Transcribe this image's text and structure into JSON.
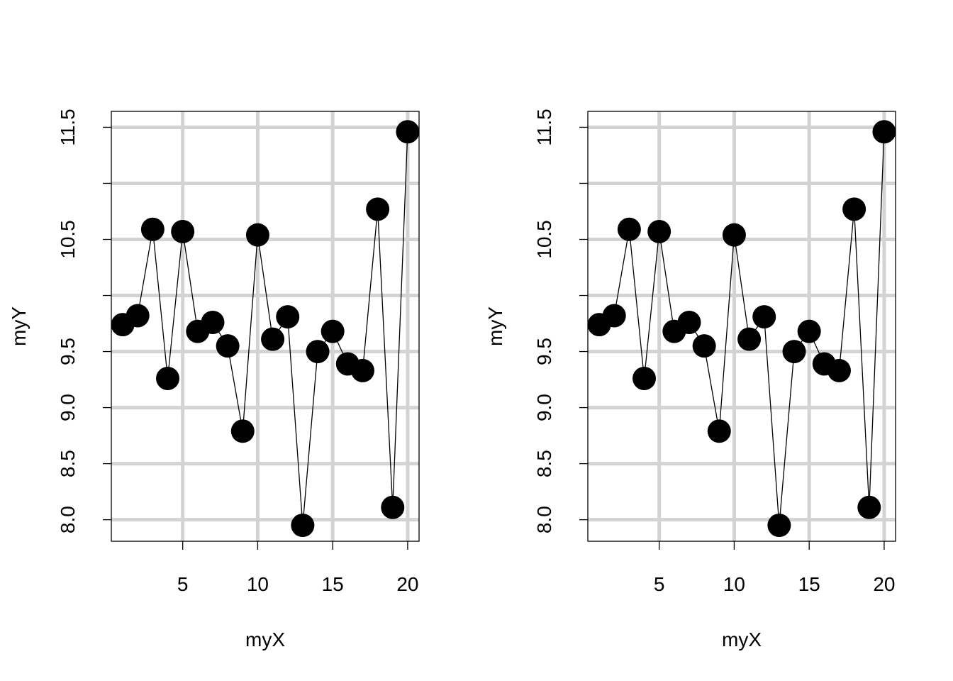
{
  "colors": {
    "background": "#ffffff",
    "grid": "#d3d3d3",
    "points": "#000000",
    "line": "#000000",
    "axis": "#000000"
  },
  "chart_data": [
    {
      "type": "scatter",
      "connected": true,
      "title": "",
      "xlabel": "myX",
      "ylabel": "myY",
      "xlim": [
        1,
        20
      ],
      "ylim": [
        7.95,
        11.5
      ],
      "x_ticks": [
        5,
        10,
        15,
        20
      ],
      "x_tick_labels": [
        "5",
        "10",
        "15",
        "20"
      ],
      "y_ticks": [
        8.0,
        8.5,
        9.0,
        9.5,
        10.5,
        11.5
      ],
      "y_tick_labels": [
        "8.0",
        "8.5",
        "9.0",
        "9.5",
        "10.5",
        "11.5"
      ],
      "y_tick_marks": [
        8.0,
        8.5,
        9.0,
        9.5,
        10.0,
        10.5,
        11.0,
        11.5
      ],
      "x_grid": [
        5,
        10,
        15,
        20
      ],
      "y_grid": [
        8.0,
        8.5,
        9.0,
        9.5,
        10.0,
        10.5,
        11.0,
        11.5
      ],
      "grid": true,
      "x": [
        1,
        2,
        3,
        4,
        5,
        6,
        7,
        8,
        9,
        10,
        11,
        12,
        13,
        14,
        15,
        16,
        17,
        18,
        19,
        20
      ],
      "y": [
        9.74,
        9.82,
        10.59,
        9.26,
        10.57,
        9.68,
        9.76,
        9.55,
        8.79,
        10.54,
        9.61,
        9.81,
        7.95,
        9.5,
        9.68,
        9.39,
        9.33,
        10.77,
        8.11,
        11.46
      ]
    },
    {
      "type": "scatter",
      "connected": true,
      "title": "",
      "xlabel": "myX",
      "ylabel": "myY",
      "xlim": [
        1,
        20
      ],
      "ylim": [
        7.95,
        11.5
      ],
      "x_ticks": [
        5,
        10,
        15,
        20
      ],
      "x_tick_labels": [
        "5",
        "10",
        "15",
        "20"
      ],
      "y_ticks": [
        8.0,
        8.5,
        9.0,
        9.5,
        10.5,
        11.5
      ],
      "y_tick_labels": [
        "8.0",
        "8.5",
        "9.0",
        "9.5",
        "10.5",
        "11.5"
      ],
      "y_tick_marks": [
        8.0,
        8.5,
        9.0,
        9.5,
        10.0,
        10.5,
        11.0,
        11.5
      ],
      "x_grid": [
        5,
        10,
        15,
        20
      ],
      "y_grid": [
        8.0,
        8.5,
        9.0,
        9.5,
        10.0,
        10.5,
        11.0,
        11.5
      ],
      "grid": true,
      "x": [
        1,
        2,
        3,
        4,
        5,
        6,
        7,
        8,
        9,
        10,
        11,
        12,
        13,
        14,
        15,
        16,
        17,
        18,
        19,
        20
      ],
      "y": [
        9.74,
        9.82,
        10.59,
        9.26,
        10.57,
        9.68,
        9.76,
        9.55,
        8.79,
        10.54,
        9.61,
        9.81,
        7.95,
        9.5,
        9.68,
        9.39,
        9.33,
        10.77,
        8.11,
        11.46
      ]
    }
  ]
}
